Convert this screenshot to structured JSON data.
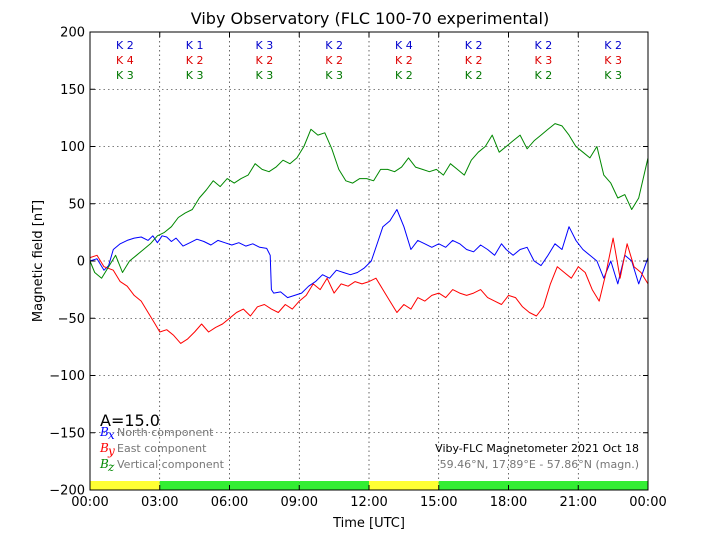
{
  "chart_data": {
    "type": "line",
    "title": "Viby Observatory (FLC 100-70 experimental)",
    "xlabel": "Time [UTC]",
    "ylabel": "Magnetic field [nT]",
    "xlim": [
      0,
      24
    ],
    "ylim": [
      -200,
      200
    ],
    "grid": true,
    "x_tick_labels": [
      "00:00",
      "03:00",
      "06:00",
      "09:00",
      "12:00",
      "15:00",
      "18:00",
      "21:00",
      "00:00"
    ],
    "y_ticks": [
      200,
      150,
      100,
      50,
      0,
      -50,
      -100,
      -150,
      -200
    ],
    "y_tick_labels": [
      "200",
      "150",
      "100",
      "50",
      "0",
      "−50",
      "−100",
      "−150",
      "−200"
    ],
    "k_index_colors": [
      "#0000cc",
      "#dd0000",
      "#007700"
    ],
    "k_indices": [
      [
        "K 2",
        "K 4",
        "K 3"
      ],
      [
        "K 1",
        "K 2",
        "K 3"
      ],
      [
        "K 3",
        "K 2",
        "K 3"
      ],
      [
        "K 2",
        "K 2",
        "K 3"
      ],
      [
        "K 4",
        "K 2",
        "K 2"
      ],
      [
        "K 2",
        "K 2",
        "K 2"
      ],
      [
        "K 2",
        "K 3",
        "K 2"
      ],
      [
        "K 2",
        "K 3",
        "K 3"
      ]
    ],
    "activity_bar": {
      "colors": {
        "quiet": "#33ee33",
        "unsettled": "#ffff33"
      },
      "levels": [
        "unsettled",
        "quiet",
        "quiet",
        "quiet",
        "unsettled",
        "quiet",
        "quiet",
        "quiet"
      ]
    },
    "series": [
      {
        "symbol": "B",
        "sub": "x",
        "label": "North component",
        "color": "#0000ff",
        "x": [
          0,
          0.3,
          0.6,
          0.8,
          1.0,
          1.3,
          1.6,
          1.9,
          2.2,
          2.5,
          2.7,
          2.9,
          3.1,
          3.3,
          3.5,
          3.7,
          4.0,
          4.3,
          4.6,
          4.9,
          5.2,
          5.5,
          5.8,
          6.1,
          6.4,
          6.7,
          7.0,
          7.3,
          7.6,
          7.75,
          7.8,
          7.9,
          8.2,
          8.5,
          8.8,
          9.1,
          9.4,
          9.7,
          10.0,
          10.3,
          10.6,
          10.9,
          11.2,
          11.5,
          11.8,
          12.1,
          12.4,
          12.6,
          12.9,
          13.2,
          13.5,
          13.8,
          14.1,
          14.4,
          14.7,
          15.0,
          15.3,
          15.6,
          15.9,
          16.2,
          16.5,
          16.8,
          17.1,
          17.4,
          17.7,
          17.9,
          18.2,
          18.5,
          18.8,
          19.1,
          19.4,
          19.7,
          20.0,
          20.3,
          20.6,
          20.9,
          21.2,
          21.5,
          21.8,
          22.1,
          22.4,
          22.7,
          23.0,
          23.3,
          23.6,
          24.0
        ],
        "y": [
          0,
          2,
          -8,
          -4,
          10,
          15,
          18,
          20,
          21,
          18,
          22,
          16,
          22,
          21,
          17,
          20,
          13,
          16,
          19,
          17,
          14,
          18,
          16,
          14,
          16,
          13,
          15,
          12,
          11,
          5,
          -25,
          -28,
          -27,
          -32,
          -30,
          -28,
          -22,
          -18,
          -12,
          -15,
          -8,
          -10,
          -12,
          -10,
          -6,
          0,
          18,
          30,
          35,
          45,
          30,
          10,
          18,
          15,
          12,
          15,
          12,
          18,
          15,
          10,
          8,
          14,
          10,
          5,
          15,
          10,
          5,
          10,
          12,
          0,
          -4,
          5,
          15,
          10,
          30,
          18,
          10,
          5,
          0,
          -15,
          0,
          -20,
          5,
          0,
          -20,
          3
        ]
      },
      {
        "symbol": "B",
        "sub": "y",
        "label": "East component",
        "color": "#ff0000",
        "x": [
          0,
          0.3,
          0.6,
          1.0,
          1.3,
          1.6,
          1.9,
          2.2,
          2.5,
          2.8,
          3.0,
          3.3,
          3.6,
          3.9,
          4.2,
          4.5,
          4.8,
          5.1,
          5.4,
          5.7,
          6.0,
          6.3,
          6.6,
          6.9,
          7.2,
          7.5,
          7.8,
          8.1,
          8.4,
          8.7,
          9.0,
          9.3,
          9.6,
          9.9,
          10.2,
          10.5,
          10.8,
          11.1,
          11.4,
          11.7,
          12.0,
          12.3,
          12.6,
          12.9,
          13.2,
          13.5,
          13.8,
          14.1,
          14.4,
          14.7,
          15.0,
          15.3,
          15.6,
          15.9,
          16.2,
          16.5,
          16.8,
          17.1,
          17.4,
          17.7,
          18.0,
          18.3,
          18.6,
          18.9,
          19.2,
          19.5,
          19.8,
          20.1,
          20.4,
          20.7,
          21.0,
          21.3,
          21.6,
          21.9,
          22.2,
          22.5,
          22.8,
          23.1,
          23.4,
          23.7,
          24.0
        ],
        "y": [
          3,
          5,
          -5,
          -8,
          -18,
          -22,
          -30,
          -35,
          -45,
          -55,
          -62,
          -60,
          -65,
          -72,
          -68,
          -62,
          -55,
          -62,
          -58,
          -55,
          -50,
          -45,
          -42,
          -48,
          -40,
          -38,
          -42,
          -45,
          -38,
          -42,
          -35,
          -30,
          -20,
          -25,
          -15,
          -28,
          -20,
          -22,
          -18,
          -20,
          -18,
          -15,
          -25,
          -35,
          -45,
          -38,
          -42,
          -32,
          -35,
          -30,
          -28,
          -32,
          -25,
          -28,
          -30,
          -28,
          -25,
          -32,
          -35,
          -38,
          -30,
          -32,
          -40,
          -45,
          -48,
          -40,
          -20,
          -5,
          -10,
          -15,
          -5,
          -10,
          -25,
          -35,
          -10,
          20,
          -15,
          15,
          -5,
          -10,
          -20
        ]
      },
      {
        "symbol": "B",
        "sub": "z",
        "label": "Vertical component",
        "color": "#008800",
        "x": [
          0,
          0.2,
          0.5,
          0.8,
          1.1,
          1.4,
          1.7,
          2.0,
          2.3,
          2.6,
          2.9,
          3.2,
          3.5,
          3.8,
          4.1,
          4.4,
          4.7,
          5.0,
          5.3,
          5.6,
          5.9,
          6.2,
          6.5,
          6.8,
          7.1,
          7.4,
          7.7,
          8.0,
          8.3,
          8.6,
          8.9,
          9.2,
          9.5,
          9.8,
          10.1,
          10.4,
          10.7,
          11.0,
          11.3,
          11.6,
          11.9,
          12.2,
          12.5,
          12.8,
          13.1,
          13.4,
          13.7,
          14.0,
          14.3,
          14.6,
          14.9,
          15.2,
          15.5,
          15.8,
          16.1,
          16.4,
          16.7,
          17.0,
          17.3,
          17.6,
          17.9,
          18.2,
          18.5,
          18.8,
          19.1,
          19.4,
          19.7,
          20.0,
          20.3,
          20.6,
          20.9,
          21.2,
          21.5,
          21.8,
          22.1,
          22.4,
          22.7,
          23.0,
          23.3,
          23.6,
          24.0
        ],
        "y": [
          0,
          -10,
          -15,
          -5,
          5,
          -10,
          0,
          5,
          10,
          15,
          22,
          25,
          30,
          38,
          42,
          45,
          55,
          62,
          70,
          65,
          72,
          68,
          72,
          75,
          85,
          80,
          78,
          82,
          88,
          85,
          90,
          100,
          115,
          110,
          112,
          98,
          80,
          70,
          68,
          72,
          72,
          70,
          80,
          80,
          78,
          82,
          90,
          82,
          80,
          78,
          80,
          75,
          85,
          80,
          75,
          88,
          95,
          100,
          110,
          95,
          100,
          105,
          110,
          98,
          105,
          110,
          115,
          120,
          118,
          110,
          100,
          95,
          90,
          100,
          75,
          68,
          55,
          58,
          45,
          55,
          90
        ]
      }
    ],
    "annotation_a": "A=15.0",
    "info_title": "Viby-FLC Magnetometer 2021 Oct 18",
    "info_location": "59.46°N, 17.89°E - 57.86°N (magn.)"
  }
}
